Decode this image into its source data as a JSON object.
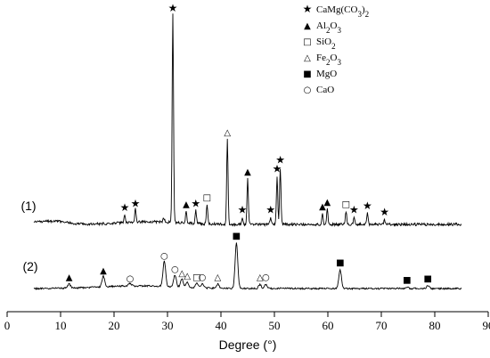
{
  "chart_data": {
    "type": "line",
    "xlabel": "Degree (°)",
    "xlim": [
      0,
      90
    ],
    "x_ticks": [
      0,
      10,
      20,
      30,
      40,
      50,
      60,
      70,
      80,
      90
    ],
    "grid": false,
    "legend_position": "top-right",
    "legend": [
      {
        "symbol": "★",
        "label": "CaMg(CO3)2",
        "marker": "star"
      },
      {
        "symbol": "▲",
        "label": "Al2O3",
        "marker": "filled-triangle"
      },
      {
        "symbol": "□",
        "label": "SiO2",
        "marker": "open-square"
      },
      {
        "symbol": "△",
        "label": "Fe2O3",
        "marker": "open-triangle"
      },
      {
        "symbol": "■",
        "label": "MgO",
        "marker": "filled-square"
      },
      {
        "symbol": "○",
        "label": "CaO",
        "marker": "open-circle"
      }
    ],
    "series": [
      {
        "name": "(1)",
        "x_range": [
          5,
          85
        ],
        "baseline": 0.04,
        "peaks": [
          {
            "x": 22.0,
            "y": 0.08,
            "marker": "star"
          },
          {
            "x": 24.0,
            "y": 0.1,
            "marker": "star"
          },
          {
            "x": 29.3,
            "y": 0.06,
            "marker": null
          },
          {
            "x": 31.0,
            "y": 1.0,
            "marker": "star"
          },
          {
            "x": 33.5,
            "y": 0.1,
            "marker": "filled-triangle"
          },
          {
            "x": 35.3,
            "y": 0.1,
            "marker": "star"
          },
          {
            "x": 37.4,
            "y": 0.13,
            "marker": "open-square"
          },
          {
            "x": 41.2,
            "y": 0.43,
            "marker": "open-triangle"
          },
          {
            "x": 44.0,
            "y": 0.07,
            "marker": "star"
          },
          {
            "x": 45.0,
            "y": 0.25,
            "marker": "filled-triangle"
          },
          {
            "x": 49.3,
            "y": 0.07,
            "marker": "star"
          },
          {
            "x": 50.5,
            "y": 0.26,
            "marker": "star"
          },
          {
            "x": 51.1,
            "y": 0.3,
            "marker": "star"
          },
          {
            "x": 59.0,
            "y": 0.09,
            "marker": "filled-triangle"
          },
          {
            "x": 59.9,
            "y": 0.11,
            "marker": "filled-triangle"
          },
          {
            "x": 63.4,
            "y": 0.1,
            "marker": "open-square"
          },
          {
            "x": 64.9,
            "y": 0.07,
            "marker": "star"
          },
          {
            "x": 67.4,
            "y": 0.09,
            "marker": "star"
          },
          {
            "x": 70.6,
            "y": 0.06,
            "marker": "star"
          }
        ]
      },
      {
        "name": "(2)",
        "x_range": [
          5,
          85
        ],
        "baseline": 0.02,
        "peaks": [
          {
            "x": 11.6,
            "y": 0.05,
            "marker": "filled-triangle"
          },
          {
            "x": 18.0,
            "y": 0.1,
            "marker": "filled-triangle"
          },
          {
            "x": 23.0,
            "y": 0.04,
            "marker": "open-circle"
          },
          {
            "x": 29.4,
            "y": 0.21,
            "marker": "open-circle"
          },
          {
            "x": 31.4,
            "y": 0.11,
            "marker": "open-circle"
          },
          {
            "x": 32.7,
            "y": 0.08,
            "marker": "open-triangle"
          },
          {
            "x": 33.7,
            "y": 0.06,
            "marker": "open-triangle"
          },
          {
            "x": 35.5,
            "y": 0.05,
            "marker": "open-square"
          },
          {
            "x": 36.5,
            "y": 0.05,
            "marker": "open-circle"
          },
          {
            "x": 39.4,
            "y": 0.05,
            "marker": "open-triangle"
          },
          {
            "x": 42.9,
            "y": 0.36,
            "marker": "filled-square"
          },
          {
            "x": 47.3,
            "y": 0.05,
            "marker": "open-triangle"
          },
          {
            "x": 48.4,
            "y": 0.05,
            "marker": "open-circle"
          },
          {
            "x": 62.3,
            "y": 0.16,
            "marker": "filled-square"
          },
          {
            "x": 74.8,
            "y": 0.03,
            "marker": "filled-square"
          },
          {
            "x": 78.7,
            "y": 0.04,
            "marker": "filled-square"
          }
        ]
      }
    ],
    "colors": {
      "line": "#000000",
      "background": "#ffffff"
    }
  }
}
